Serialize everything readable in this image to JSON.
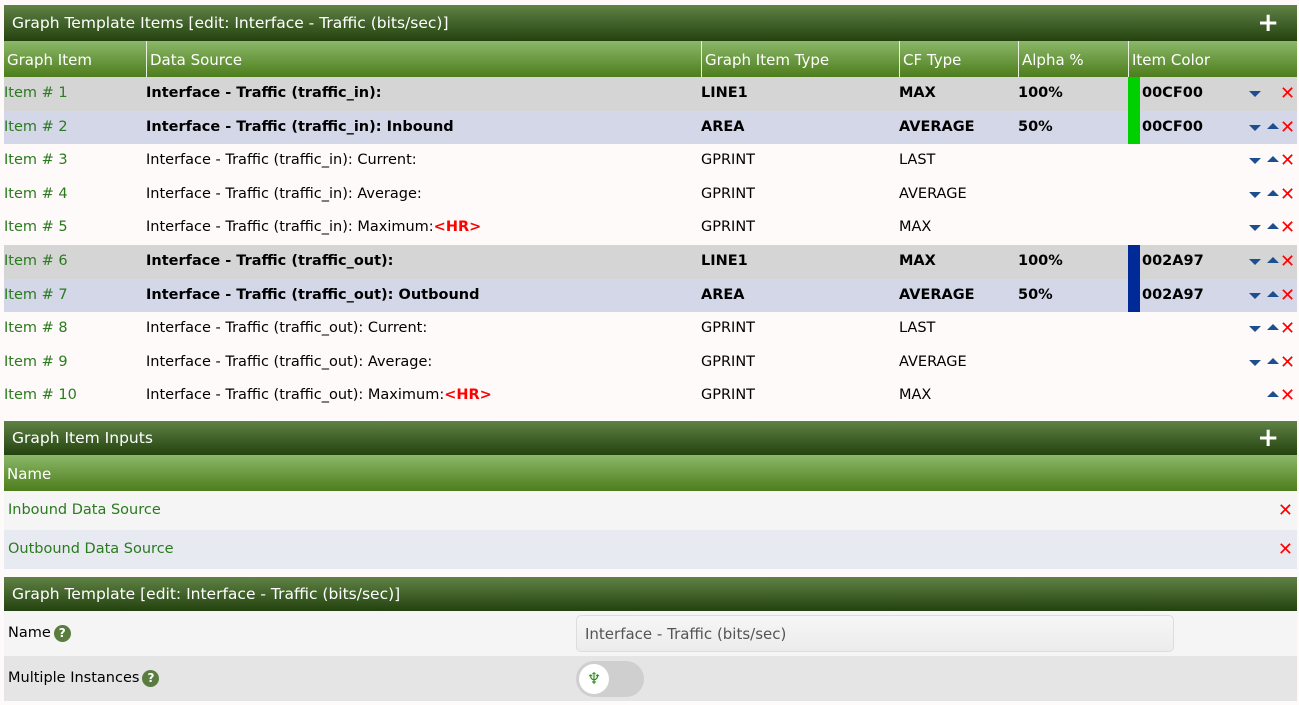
{
  "items_section": {
    "title": "Graph Template Items [edit: Interface - Traffic (bits/sec)]",
    "columns": [
      "Graph Item",
      "Data Source",
      "Graph Item Type",
      "CF Type",
      "Alpha %",
      "Item Color"
    ],
    "rows": [
      {
        "item": "Item # 1",
        "source": "Interface - Traffic (traffic_in):",
        "hr": "",
        "type": "LINE1",
        "cf": "MAX",
        "alpha": "100%",
        "color": "00CF00",
        "hex": "#00CF00",
        "bg": "gray",
        "bold": true,
        "up": false,
        "down": true
      },
      {
        "item": "Item # 2",
        "source": "Interface - Traffic (traffic_in): Inbound",
        "hr": "",
        "type": "AREA",
        "cf": "AVERAGE",
        "alpha": "50%",
        "color": "00CF00",
        "hex": "#00CF00",
        "bg": "blue",
        "bold": true,
        "up": true,
        "down": true
      },
      {
        "item": "Item # 3",
        "source": "Interface - Traffic (traffic_in): Current:",
        "hr": "",
        "type": "GPRINT",
        "cf": "LAST",
        "alpha": "",
        "color": "",
        "hex": "",
        "bg": "",
        "bold": false,
        "up": true,
        "down": true
      },
      {
        "item": "Item # 4",
        "source": "Interface - Traffic (traffic_in): Average:",
        "hr": "",
        "type": "GPRINT",
        "cf": "AVERAGE",
        "alpha": "",
        "color": "",
        "hex": "",
        "bg": "",
        "bold": false,
        "up": true,
        "down": true
      },
      {
        "item": "Item # 5",
        "source": "Interface - Traffic (traffic_in): Maximum:",
        "hr": "<HR>",
        "type": "GPRINT",
        "cf": "MAX",
        "alpha": "",
        "color": "",
        "hex": "",
        "bg": "",
        "bold": false,
        "up": true,
        "down": true
      },
      {
        "item": "Item # 6",
        "source": "Interface - Traffic (traffic_out):",
        "hr": "",
        "type": "LINE1",
        "cf": "MAX",
        "alpha": "100%",
        "color": "002A97",
        "hex": "#002A97",
        "bg": "gray",
        "bold": true,
        "up": true,
        "down": true
      },
      {
        "item": "Item # 7",
        "source": "Interface - Traffic (traffic_out): Outbound",
        "hr": "",
        "type": "AREA",
        "cf": "AVERAGE",
        "alpha": "50%",
        "color": "002A97",
        "hex": "#002A97",
        "bg": "blue",
        "bold": true,
        "up": true,
        "down": true
      },
      {
        "item": "Item # 8",
        "source": "Interface - Traffic (traffic_out): Current:",
        "hr": "",
        "type": "GPRINT",
        "cf": "LAST",
        "alpha": "",
        "color": "",
        "hex": "",
        "bg": "",
        "bold": false,
        "up": true,
        "down": true
      },
      {
        "item": "Item # 9",
        "source": "Interface - Traffic (traffic_out): Average:",
        "hr": "",
        "type": "GPRINT",
        "cf": "AVERAGE",
        "alpha": "",
        "color": "",
        "hex": "",
        "bg": "",
        "bold": false,
        "up": true,
        "down": true
      },
      {
        "item": "Item # 10",
        "source": "Interface - Traffic (traffic_out): Maximum:",
        "hr": "<HR>",
        "type": "GPRINT",
        "cf": "MAX",
        "alpha": "",
        "color": "",
        "hex": "",
        "bg": "",
        "bold": false,
        "up": true,
        "down": false
      }
    ]
  },
  "inputs_section": {
    "title": "Graph Item Inputs",
    "column": "Name",
    "rows": [
      "Inbound Data Source",
      "Outbound Data Source"
    ]
  },
  "template_section": {
    "title": "Graph Template [edit: Interface - Traffic (bits/sec)]",
    "name_label": "Name",
    "name_value": "Interface - Traffic (bits/sec)",
    "multi_label": "Multiple Instances",
    "multi_on": false
  },
  "icons": {
    "add": "plus-icon",
    "help": "question-circle-icon",
    "move_down": "triangle-down-icon",
    "move_up": "triangle-up-icon",
    "delete": "x-icon"
  }
}
